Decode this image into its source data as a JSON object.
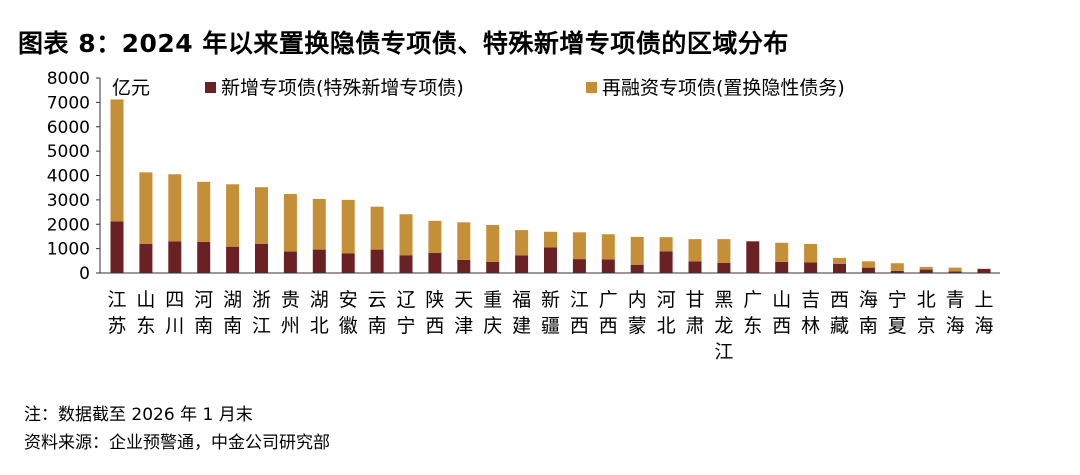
{
  "title": "图表 8：2024 年以来置换隐债专项债、特殊新增专项债的区域分布",
  "notes": {
    "note": "注：数据截至 2026 年 1 月末",
    "source": "资料来源：企业预警通，中金公司研究部"
  },
  "chart_data": {
    "type": "bar",
    "stacked": true,
    "unit_label": "亿元",
    "ylim": [
      0,
      8000
    ],
    "yticks": [
      0,
      1000,
      2000,
      3000,
      4000,
      5000,
      6000,
      7000,
      8000
    ],
    "grid": false,
    "legend_position": "top",
    "categories": [
      "江苏",
      "山东",
      "四川",
      "河南",
      "湖南",
      "浙江",
      "贵州",
      "湖北",
      "安徽",
      "云南",
      "辽宁",
      "陕西",
      "天津",
      "重庆",
      "福建",
      "新疆",
      "江西",
      "广西",
      "内蒙",
      "河北",
      "甘肃",
      "黑龙江",
      "广东",
      "山西",
      "吉林",
      "西藏",
      "海南",
      "宁夏",
      "北京",
      "青海",
      "上海"
    ],
    "series": [
      {
        "name": "新增专项债(特殊新增专项债)",
        "color": "#6b2024",
        "values": [
          2120,
          1200,
          1300,
          1280,
          1080,
          1200,
          880,
          960,
          800,
          960,
          730,
          820,
          540,
          460,
          720,
          1050,
          570,
          560,
          340,
          890,
          480,
          420,
          1300,
          460,
          430,
          370,
          220,
          90,
          140,
          60,
          170
        ]
      },
      {
        "name": "再融资专项债(置换隐性债务)",
        "color": "#c58f38",
        "values": [
          5000,
          2930,
          2750,
          2460,
          2560,
          2320,
          2360,
          2080,
          2200,
          1760,
          1680,
          1320,
          1540,
          1510,
          1040,
          640,
          1100,
          1030,
          1140,
          580,
          910,
          970,
          0,
          780,
          760,
          250,
          260,
          310,
          110,
          160,
          0
        ]
      }
    ]
  }
}
